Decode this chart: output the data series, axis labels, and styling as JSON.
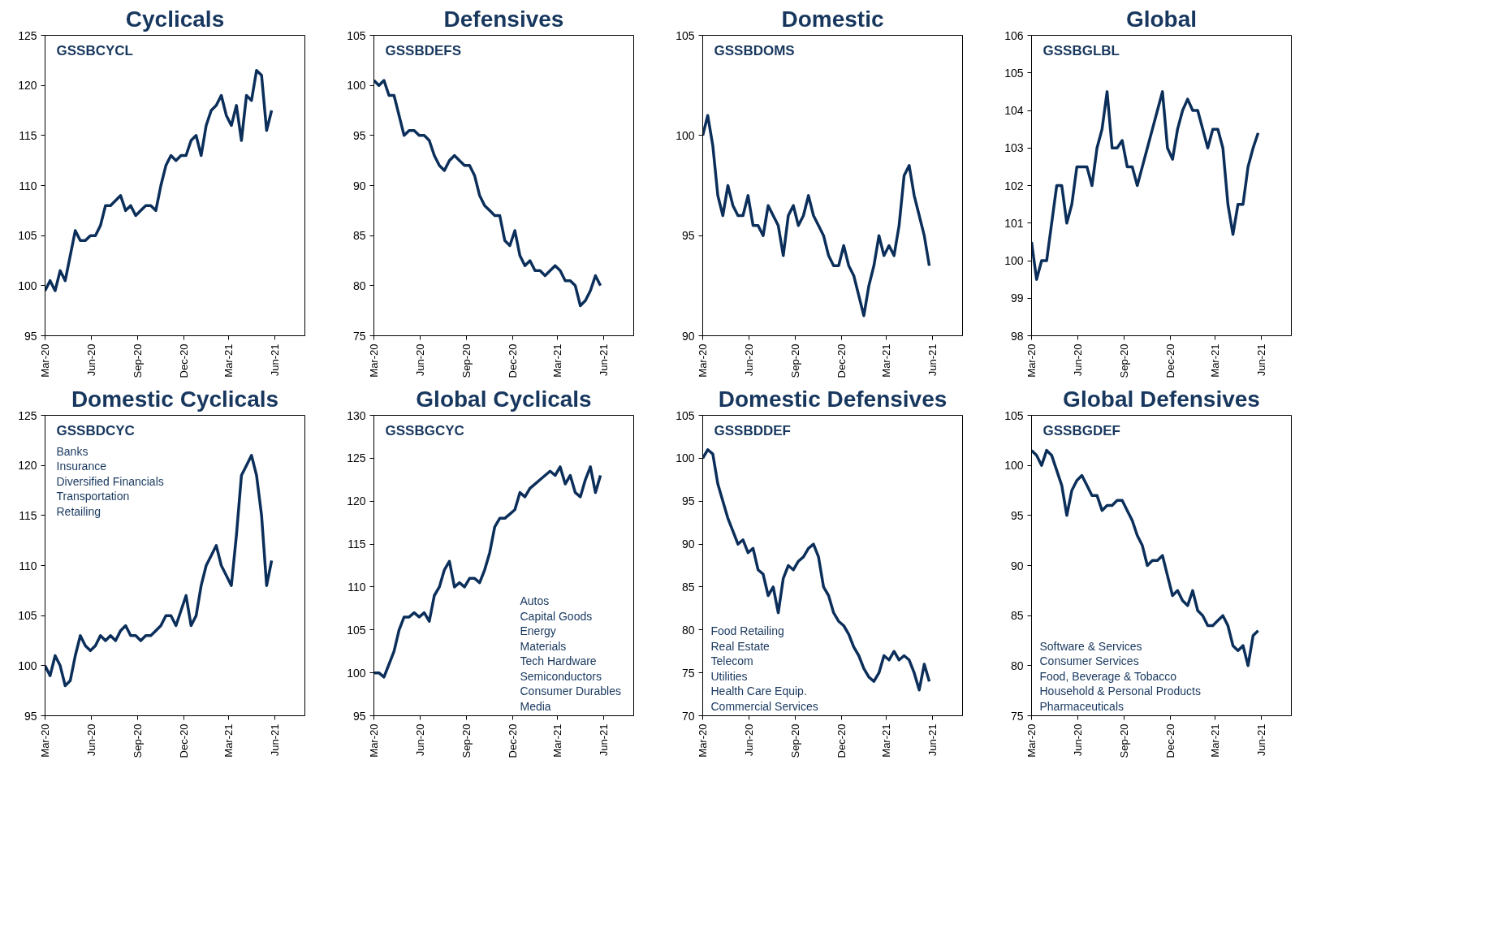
{
  "chart_data": [
    {
      "type": "line",
      "title": "Cyclicals",
      "annotations": [
        "GSSBCYCL"
      ],
      "xlim": [
        "2020-03-01",
        "2021-07-30"
      ],
      "ylim": [
        95,
        125
      ],
      "yticks": [
        95,
        100,
        105,
        110,
        115,
        120,
        125
      ],
      "xticks": [
        {
          "value": "2020-03-01",
          "label": "Mar-20"
        },
        {
          "value": "2020-06-01",
          "label": "Jun-20"
        },
        {
          "value": "2020-09-01",
          "label": "Sep-20"
        },
        {
          "value": "2020-12-01",
          "label": "Dec-20"
        },
        {
          "value": "2021-03-01",
          "label": "Mar-21"
        },
        {
          "value": "2021-06-01",
          "label": "Jun-21"
        }
      ],
      "x": [
        "2020-03-01",
        "2020-03-11",
        "2020-03-21",
        "2020-03-31",
        "2020-04-10",
        "2020-04-20",
        "2020-04-30",
        "2020-05-10",
        "2020-05-20",
        "2020-05-30",
        "2020-06-09",
        "2020-06-19",
        "2020-06-29",
        "2020-07-09",
        "2020-07-19",
        "2020-07-29",
        "2020-08-08",
        "2020-08-18",
        "2020-08-28",
        "2020-09-07",
        "2020-09-17",
        "2020-09-27",
        "2020-10-07",
        "2020-10-17",
        "2020-10-27",
        "2020-11-06",
        "2020-11-16",
        "2020-11-26",
        "2020-12-06",
        "2020-12-16",
        "2020-12-26",
        "2021-01-05",
        "2021-01-15",
        "2021-01-25",
        "2021-02-04",
        "2021-02-14",
        "2021-02-24",
        "2021-03-06",
        "2021-03-16",
        "2021-03-26",
        "2021-04-05",
        "2021-04-15",
        "2021-04-25",
        "2021-05-05",
        "2021-05-15",
        "2021-05-25"
      ],
      "series": [
        {
          "color": "#0b2f5a",
          "values": [
            99.5,
            100.5,
            99.5,
            101.5,
            100.5,
            103,
            105.5,
            104.5,
            104.5,
            105,
            105,
            106,
            108,
            108,
            108.5,
            109,
            107.5,
            108,
            107,
            107.5,
            108,
            108,
            107.5,
            110,
            112,
            113,
            112.5,
            113,
            113,
            114.5,
            115,
            113,
            116,
            117.5,
            118,
            119,
            117,
            116,
            118,
            114.5,
            119,
            118.5,
            121.5,
            121,
            115.5,
            117.5
          ]
        }
      ]
    },
    {
      "type": "line",
      "title": "Defensives",
      "annotations": [
        "GSSBDEFS"
      ],
      "xlim": [
        "2020-03-01",
        "2021-07-30"
      ],
      "ylim": [
        75,
        105
      ],
      "yticks": [
        75,
        80,
        85,
        90,
        95,
        100,
        105
      ],
      "xticks": [
        {
          "value": "2020-03-01",
          "label": "Mar-20"
        },
        {
          "value": "2020-06-01",
          "label": "Jun-20"
        },
        {
          "value": "2020-09-01",
          "label": "Sep-20"
        },
        {
          "value": "2020-12-01",
          "label": "Dec-20"
        },
        {
          "value": "2021-03-01",
          "label": "Mar-21"
        },
        {
          "value": "2021-06-01",
          "label": "Jun-21"
        }
      ],
      "x": [
        "2020-03-01",
        "2020-03-11",
        "2020-03-21",
        "2020-03-31",
        "2020-04-10",
        "2020-04-20",
        "2020-04-30",
        "2020-05-10",
        "2020-05-20",
        "2020-05-30",
        "2020-06-09",
        "2020-06-19",
        "2020-06-29",
        "2020-07-09",
        "2020-07-19",
        "2020-07-29",
        "2020-08-08",
        "2020-08-18",
        "2020-08-28",
        "2020-09-07",
        "2020-09-17",
        "2020-09-27",
        "2020-10-07",
        "2020-10-17",
        "2020-10-27",
        "2020-11-06",
        "2020-11-16",
        "2020-11-26",
        "2020-12-06",
        "2020-12-16",
        "2020-12-26",
        "2021-01-05",
        "2021-01-15",
        "2021-01-25",
        "2021-02-04",
        "2021-02-14",
        "2021-02-24",
        "2021-03-06",
        "2021-03-16",
        "2021-03-26",
        "2021-04-05",
        "2021-04-15",
        "2021-04-25",
        "2021-05-05",
        "2021-05-15",
        "2021-05-25"
      ],
      "series": [
        {
          "color": "#0b2f5a",
          "values": [
            100.5,
            100,
            100.5,
            99,
            99,
            97,
            95,
            95.5,
            95.5,
            95,
            95,
            94.5,
            93,
            92,
            91.5,
            92.5,
            93,
            92.5,
            92,
            92,
            91,
            89,
            88,
            87.5,
            87,
            87,
            84.5,
            84,
            85.5,
            83,
            82,
            82.5,
            81.5,
            81.5,
            81,
            81.5,
            82,
            81.5,
            80.5,
            80.5,
            80,
            78,
            78.5,
            79.5,
            81,
            80
          ]
        }
      ]
    },
    {
      "type": "line",
      "title": "Domestic",
      "annotations": [
        "GSSBDOMS"
      ],
      "xlim": [
        "2020-03-01",
        "2021-07-30"
      ],
      "ylim": [
        90,
        105
      ],
      "yticks": [
        90,
        95,
        100,
        105
      ],
      "xticks": [
        {
          "value": "2020-03-01",
          "label": "Mar-20"
        },
        {
          "value": "2020-06-01",
          "label": "Jun-20"
        },
        {
          "value": "2020-09-01",
          "label": "Sep-20"
        },
        {
          "value": "2020-12-01",
          "label": "Dec-20"
        },
        {
          "value": "2021-03-01",
          "label": "Mar-21"
        },
        {
          "value": "2021-06-01",
          "label": "Jun-21"
        }
      ],
      "x": [
        "2020-03-01",
        "2020-03-11",
        "2020-03-21",
        "2020-03-31",
        "2020-04-10",
        "2020-04-20",
        "2020-04-30",
        "2020-05-10",
        "2020-05-20",
        "2020-05-30",
        "2020-06-09",
        "2020-06-19",
        "2020-06-29",
        "2020-07-09",
        "2020-07-19",
        "2020-07-29",
        "2020-08-08",
        "2020-08-18",
        "2020-08-28",
        "2020-09-07",
        "2020-09-17",
        "2020-09-27",
        "2020-10-07",
        "2020-10-17",
        "2020-10-27",
        "2020-11-06",
        "2020-11-16",
        "2020-11-26",
        "2020-12-06",
        "2020-12-16",
        "2020-12-26",
        "2021-01-05",
        "2021-01-15",
        "2021-01-25",
        "2021-02-04",
        "2021-02-14",
        "2021-02-24",
        "2021-03-06",
        "2021-03-16",
        "2021-03-26",
        "2021-04-05",
        "2021-04-15",
        "2021-04-25",
        "2021-05-05",
        "2021-05-15",
        "2021-05-25"
      ],
      "series": [
        {
          "color": "#0b2f5a",
          "values": [
            100,
            101,
            99.5,
            97,
            96,
            97.5,
            96.5,
            96,
            96,
            97,
            95.5,
            95.5,
            95,
            96.5,
            96,
            95.5,
            94,
            96,
            96.5,
            95.5,
            96,
            97,
            96,
            95.5,
            95,
            94,
            93.5,
            93.5,
            94.5,
            93.5,
            93,
            92,
            91,
            92.5,
            93.5,
            95,
            94,
            94.5,
            94,
            95.5,
            98,
            98.5,
            97,
            96,
            95,
            93.5
          ]
        }
      ]
    },
    {
      "type": "line",
      "title": "Global",
      "annotations": [
        "GSSBGLBL"
      ],
      "xlim": [
        "2020-03-01",
        "2021-07-30"
      ],
      "ylim": [
        98,
        106
      ],
      "yticks": [
        98,
        99,
        100,
        101,
        102,
        103,
        104,
        105,
        106
      ],
      "xticks": [
        {
          "value": "2020-03-01",
          "label": "Mar-20"
        },
        {
          "value": "2020-06-01",
          "label": "Jun-20"
        },
        {
          "value": "2020-09-01",
          "label": "Sep-20"
        },
        {
          "value": "2020-12-01",
          "label": "Dec-20"
        },
        {
          "value": "2021-03-01",
          "label": "Mar-21"
        },
        {
          "value": "2021-06-01",
          "label": "Jun-21"
        }
      ],
      "x": [
        "2020-03-01",
        "2020-03-11",
        "2020-03-21",
        "2020-03-31",
        "2020-04-10",
        "2020-04-20",
        "2020-04-30",
        "2020-05-10",
        "2020-05-20",
        "2020-05-30",
        "2020-06-09",
        "2020-06-19",
        "2020-06-29",
        "2020-07-09",
        "2020-07-19",
        "2020-07-29",
        "2020-08-08",
        "2020-08-18",
        "2020-08-28",
        "2020-09-07",
        "2020-09-17",
        "2020-09-27",
        "2020-10-07",
        "2020-10-17",
        "2020-10-27",
        "2020-11-06",
        "2020-11-16",
        "2020-11-26",
        "2020-12-06",
        "2020-12-16",
        "2020-12-26",
        "2021-01-05",
        "2021-01-15",
        "2021-01-25",
        "2021-02-04",
        "2021-02-14",
        "2021-02-24",
        "2021-03-06",
        "2021-03-16",
        "2021-03-26",
        "2021-04-05",
        "2021-04-15",
        "2021-04-25",
        "2021-05-05",
        "2021-05-15",
        "2021-05-25"
      ],
      "series": [
        {
          "color": "#0b2f5a",
          "values": [
            100.5,
            99.5,
            100,
            100,
            101,
            102,
            102,
            101,
            101.5,
            102.5,
            102.5,
            102.5,
            102,
            103,
            103.5,
            104.5,
            103,
            103,
            103.2,
            102.5,
            102.5,
            102,
            102.5,
            103,
            103.5,
            104,
            104.5,
            103,
            102.7,
            103.5,
            104,
            104.3,
            104,
            104,
            103.5,
            103,
            103.5,
            103.5,
            103,
            101.5,
            100.7,
            101.5,
            101.5,
            102.5,
            103,
            103.4
          ]
        }
      ]
    },
    {
      "type": "line",
      "title": "Domestic Cyclicals",
      "annotations": [
        "GSSBDCYC",
        "Banks",
        "Insurance",
        "Diversified Financials",
        "Transportation",
        "Retailing"
      ],
      "xlim": [
        "2020-03-01",
        "2021-07-30"
      ],
      "ylim": [
        95,
        125
      ],
      "yticks": [
        95,
        100,
        105,
        110,
        115,
        120,
        125
      ],
      "xticks": [
        {
          "value": "2020-03-01",
          "label": "Mar-20"
        },
        {
          "value": "2020-06-01",
          "label": "Jun-20"
        },
        {
          "value": "2020-09-01",
          "label": "Sep-20"
        },
        {
          "value": "2020-12-01",
          "label": "Dec-20"
        },
        {
          "value": "2021-03-01",
          "label": "Mar-21"
        },
        {
          "value": "2021-06-01",
          "label": "Jun-21"
        }
      ],
      "x": [
        "2020-03-01",
        "2020-03-11",
        "2020-03-21",
        "2020-03-31",
        "2020-04-10",
        "2020-04-20",
        "2020-04-30",
        "2020-05-10",
        "2020-05-20",
        "2020-05-30",
        "2020-06-09",
        "2020-06-19",
        "2020-06-29",
        "2020-07-09",
        "2020-07-19",
        "2020-07-29",
        "2020-08-08",
        "2020-08-18",
        "2020-08-28",
        "2020-09-07",
        "2020-09-17",
        "2020-09-27",
        "2020-10-07",
        "2020-10-17",
        "2020-10-27",
        "2020-11-06",
        "2020-11-16",
        "2020-11-26",
        "2020-12-06",
        "2020-12-16",
        "2020-12-26",
        "2021-01-05",
        "2021-01-15",
        "2021-01-25",
        "2021-02-04",
        "2021-02-14",
        "2021-02-24",
        "2021-03-06",
        "2021-03-16",
        "2021-03-26",
        "2021-04-05",
        "2021-04-15",
        "2021-04-25",
        "2021-05-05",
        "2021-05-15",
        "2021-05-25"
      ],
      "series": [
        {
          "color": "#0b2f5a",
          "values": [
            100,
            99,
            101,
            100,
            98,
            98.5,
            101,
            103,
            102,
            101.5,
            102,
            103,
            102.5,
            103,
            102.5,
            103.5,
            104,
            103,
            103,
            102.5,
            103,
            103,
            103.5,
            104,
            105,
            105,
            104,
            105.5,
            107,
            104,
            105,
            108,
            110,
            111,
            112,
            110,
            109,
            108,
            113,
            119,
            120,
            121,
            119,
            115,
            108,
            110.5
          ]
        }
      ]
    },
    {
      "type": "line",
      "title": "Global Cyclicals",
      "annotations": [
        "GSSBGCYC",
        "Autos",
        "Capital Goods",
        "Energy",
        "Materials",
        "Tech Hardware",
        "Semiconductors",
        "Consumer Durables",
        "Media"
      ],
      "xlim": [
        "2020-03-01",
        "2021-07-30"
      ],
      "ylim": [
        95,
        130
      ],
      "yticks": [
        95,
        100,
        105,
        110,
        115,
        120,
        125,
        130
      ],
      "xticks": [
        {
          "value": "2020-03-01",
          "label": "Mar-20"
        },
        {
          "value": "2020-06-01",
          "label": "Jun-20"
        },
        {
          "value": "2020-09-01",
          "label": "Sep-20"
        },
        {
          "value": "2020-12-01",
          "label": "Dec-20"
        },
        {
          "value": "2021-03-01",
          "label": "Mar-21"
        },
        {
          "value": "2021-06-01",
          "label": "Jun-21"
        }
      ],
      "x": [
        "2020-03-01",
        "2020-03-11",
        "2020-03-21",
        "2020-03-31",
        "2020-04-10",
        "2020-04-20",
        "2020-04-30",
        "2020-05-10",
        "2020-05-20",
        "2020-05-30",
        "2020-06-09",
        "2020-06-19",
        "2020-06-29",
        "2020-07-09",
        "2020-07-19",
        "2020-07-29",
        "2020-08-08",
        "2020-08-18",
        "2020-08-28",
        "2020-09-07",
        "2020-09-17",
        "2020-09-27",
        "2020-10-07",
        "2020-10-17",
        "2020-10-27",
        "2020-11-06",
        "2020-11-16",
        "2020-11-26",
        "2020-12-06",
        "2020-12-16",
        "2020-12-26",
        "2021-01-05",
        "2021-01-15",
        "2021-01-25",
        "2021-02-04",
        "2021-02-14",
        "2021-02-24",
        "2021-03-06",
        "2021-03-16",
        "2021-03-26",
        "2021-04-05",
        "2021-04-15",
        "2021-04-25",
        "2021-05-05",
        "2021-05-15",
        "2021-05-25"
      ],
      "series": [
        {
          "color": "#0b2f5a",
          "values": [
            100,
            100,
            99.5,
            101,
            102.5,
            105,
            106.5,
            106.5,
            107,
            106.5,
            107,
            106,
            109,
            110,
            112,
            113,
            110,
            110.5,
            110,
            111,
            111,
            110.5,
            112,
            114,
            117,
            118,
            118,
            118.5,
            119,
            121,
            120.5,
            121.5,
            122,
            122.5,
            123,
            123.5,
            123,
            124,
            122,
            123,
            121,
            120.5,
            122.5,
            124,
            121,
            123
          ]
        }
      ]
    },
    {
      "type": "line",
      "title": "Domestic Defensives",
      "annotations": [
        "GSSBDDEF",
        "Food Retailing",
        "Real Estate",
        "Telecom",
        "Utilities",
        "Health Care Equip.",
        "Commercial Services"
      ],
      "xlim": [
        "2020-03-01",
        "2021-07-30"
      ],
      "ylim": [
        70,
        105
      ],
      "yticks": [
        70,
        75,
        80,
        85,
        90,
        95,
        100,
        105
      ],
      "xticks": [
        {
          "value": "2020-03-01",
          "label": "Mar-20"
        },
        {
          "value": "2020-06-01",
          "label": "Jun-20"
        },
        {
          "value": "2020-09-01",
          "label": "Sep-20"
        },
        {
          "value": "2020-12-01",
          "label": "Dec-20"
        },
        {
          "value": "2021-03-01",
          "label": "Mar-21"
        },
        {
          "value": "2021-06-01",
          "label": "Jun-21"
        }
      ],
      "x": [
        "2020-03-01",
        "2020-03-11",
        "2020-03-21",
        "2020-03-31",
        "2020-04-10",
        "2020-04-20",
        "2020-04-30",
        "2020-05-10",
        "2020-05-20",
        "2020-05-30",
        "2020-06-09",
        "2020-06-19",
        "2020-06-29",
        "2020-07-09",
        "2020-07-19",
        "2020-07-29",
        "2020-08-08",
        "2020-08-18",
        "2020-08-28",
        "2020-09-07",
        "2020-09-17",
        "2020-09-27",
        "2020-10-07",
        "2020-10-17",
        "2020-10-27",
        "2020-11-06",
        "2020-11-16",
        "2020-11-26",
        "2020-12-06",
        "2020-12-16",
        "2020-12-26",
        "2021-01-05",
        "2021-01-15",
        "2021-01-25",
        "2021-02-04",
        "2021-02-14",
        "2021-02-24",
        "2021-03-06",
        "2021-03-16",
        "2021-03-26",
        "2021-04-05",
        "2021-04-15",
        "2021-04-25",
        "2021-05-05",
        "2021-05-15",
        "2021-05-25"
      ],
      "series": [
        {
          "color": "#0b2f5a",
          "values": [
            100,
            101,
            100.5,
            97,
            95,
            93,
            91.5,
            90,
            90.5,
            89,
            89.5,
            87,
            86.5,
            84,
            85,
            82,
            86,
            87.5,
            87,
            88,
            88.5,
            89.5,
            90,
            88.5,
            85,
            84,
            82,
            81,
            80.5,
            79.5,
            78,
            77,
            75.5,
            74.5,
            74,
            75,
            77,
            76.5,
            77.5,
            76.5,
            77,
            76.5,
            75,
            73,
            76,
            74
          ]
        }
      ]
    },
    {
      "type": "line",
      "title": "Global Defensives",
      "annotations": [
        "GSSBGDEF",
        "Software & Services",
        "Consumer Services",
        "Food, Beverage & Tobacco",
        "Household & Personal Products",
        "Pharmaceuticals"
      ],
      "xlim": [
        "2020-03-01",
        "2021-07-30"
      ],
      "ylim": [
        75,
        105
      ],
      "yticks": [
        75,
        80,
        85,
        90,
        95,
        100,
        105
      ],
      "xticks": [
        {
          "value": "2020-03-01",
          "label": "Mar-20"
        },
        {
          "value": "2020-06-01",
          "label": "Jun-20"
        },
        {
          "value": "2020-09-01",
          "label": "Sep-20"
        },
        {
          "value": "2020-12-01",
          "label": "Dec-20"
        },
        {
          "value": "2021-03-01",
          "label": "Mar-21"
        },
        {
          "value": "2021-06-01",
          "label": "Jun-21"
        }
      ],
      "x": [
        "2020-03-01",
        "2020-03-11",
        "2020-03-21",
        "2020-03-31",
        "2020-04-10",
        "2020-04-20",
        "2020-04-30",
        "2020-05-10",
        "2020-05-20",
        "2020-05-30",
        "2020-06-09",
        "2020-06-19",
        "2020-06-29",
        "2020-07-09",
        "2020-07-19",
        "2020-07-29",
        "2020-08-08",
        "2020-08-18",
        "2020-08-28",
        "2020-09-07",
        "2020-09-17",
        "2020-09-27",
        "2020-10-07",
        "2020-10-17",
        "2020-10-27",
        "2020-11-06",
        "2020-11-16",
        "2020-11-26",
        "2020-12-06",
        "2020-12-16",
        "2020-12-26",
        "2021-01-05",
        "2021-01-15",
        "2021-01-25",
        "2021-02-04",
        "2021-02-14",
        "2021-02-24",
        "2021-03-06",
        "2021-03-16",
        "2021-03-26",
        "2021-04-05",
        "2021-04-15",
        "2021-04-25",
        "2021-05-05",
        "2021-05-15",
        "2021-05-25"
      ],
      "series": [
        {
          "color": "#0b2f5a",
          "values": [
            101.5,
            101,
            100,
            101.5,
            101,
            99.5,
            98,
            95,
            97.5,
            98.5,
            99,
            98,
            97,
            97,
            95.5,
            96,
            96,
            96.5,
            96.5,
            95.5,
            94.5,
            93,
            92,
            90,
            90.5,
            90.5,
            91,
            89,
            87,
            87.5,
            86.5,
            86,
            87.5,
            85.5,
            85,
            84,
            84,
            84.5,
            85,
            84,
            82,
            81.5,
            82,
            80,
            83,
            83.5
          ]
        }
      ]
    }
  ]
}
